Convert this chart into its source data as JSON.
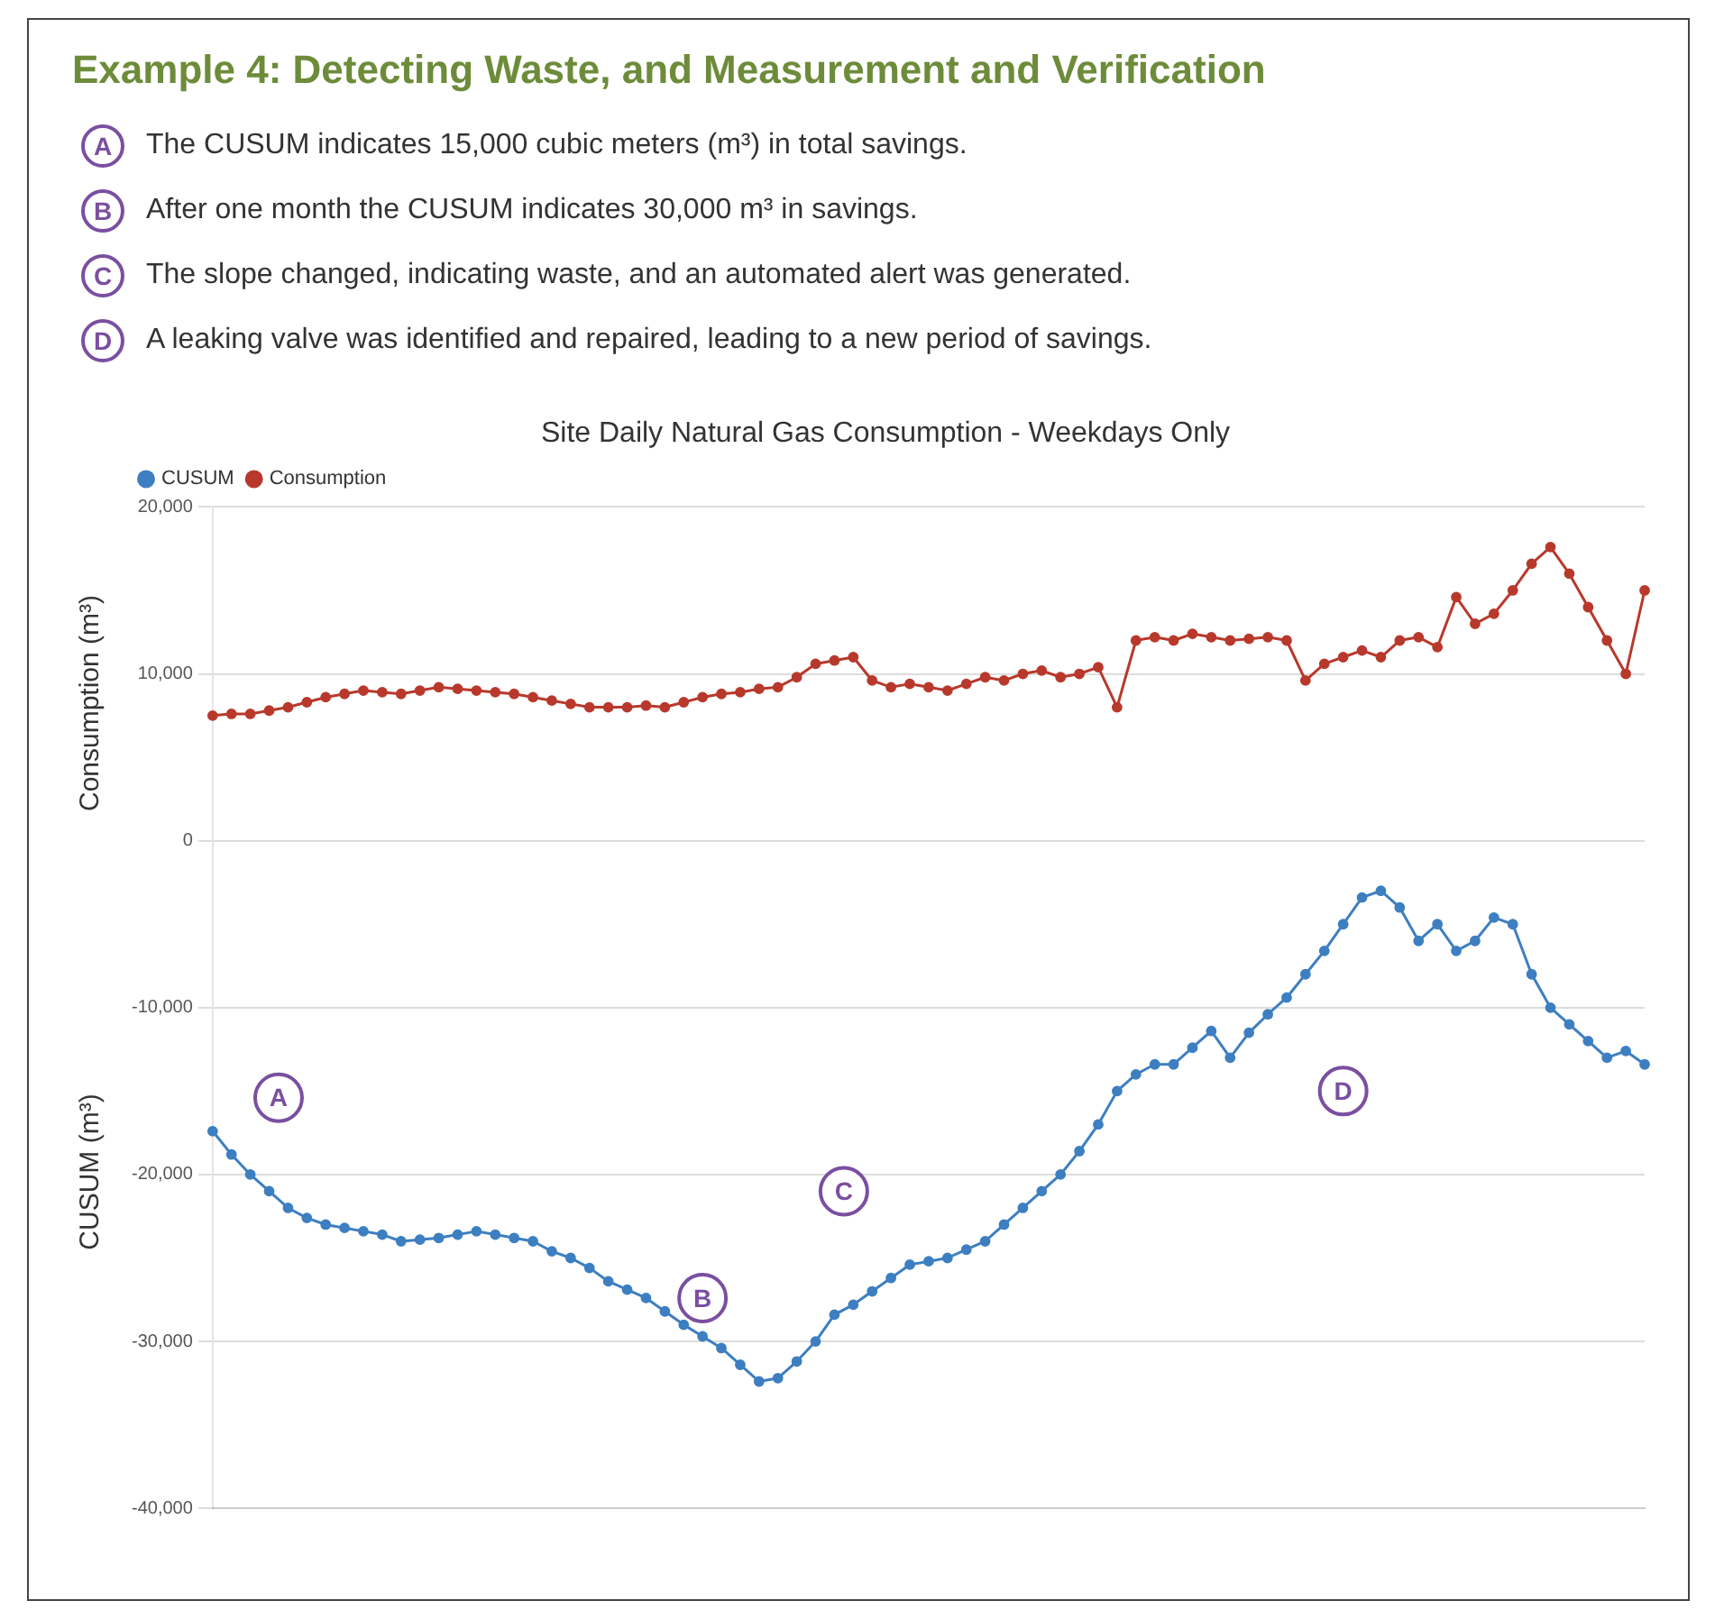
{
  "chart_data": {
    "type": "line",
    "title": "Example 4: Detecting Waste, and Measurement and Verification",
    "subtitle": "Site Daily Natural Gas Consumption - Weekdays Only",
    "ylabel": "Consumption (m³)",
    "y2label": "CUSUM (m³)",
    "categories": [
      null,
      null,
      null,
      null,
      null,
      null,
      null,
      null,
      null,
      null,
      null,
      null,
      null,
      null,
      null,
      null,
      null,
      null,
      null,
      null,
      null,
      null,
      null,
      null,
      null,
      null,
      null,
      null,
      null,
      null,
      null,
      null,
      null,
      null,
      null,
      null,
      null,
      null,
      null,
      null,
      null,
      null,
      null,
      null,
      null,
      null,
      null,
      null,
      null,
      null,
      null,
      null,
      null,
      null,
      null,
      null,
      null,
      null,
      null,
      null,
      null,
      null,
      null,
      null,
      null,
      null,
      null,
      null,
      null,
      null,
      null,
      null,
      null,
      null,
      null,
      null,
      null
    ],
    "series": [
      {
        "name": "CUSUM",
        "color": "#3d7fc1",
        "values": [
          -17400,
          -18800,
          -20000,
          -21000,
          -22000,
          -22600,
          -23000,
          -23200,
          -23400,
          -23600,
          -24000,
          -23900,
          -23800,
          -23600,
          -23400,
          -23600,
          -23800,
          -24000,
          -24600,
          -25000,
          -25600,
          -26400,
          -26900,
          -27400,
          -28200,
          -29000,
          -29700,
          -30400,
          -31400,
          -32400,
          -32200,
          -31200,
          -30000,
          -28400,
          -27800,
          -27000,
          -26200,
          -25400,
          -25200,
          -25000,
          -24500,
          -24000,
          -23000,
          -22000,
          -21000,
          -20000,
          -18600,
          -17000,
          -15000,
          -14000,
          -13400,
          -13400,
          -12400,
          -11400,
          -13000,
          -11500,
          -10400,
          -9400,
          -8000,
          -6600,
          -5000,
          -3400,
          -3000,
          -4000,
          -6000,
          -5000,
          -6600,
          -6000,
          -4600,
          -5000,
          -8000,
          -10000,
          -11000,
          -12000,
          -13000,
          -12600,
          -13400
        ]
      },
      {
        "name": "Consumption",
        "color": "#b8392c",
        "values": [
          7500,
          7600,
          7600,
          7800,
          8000,
          8300,
          8600,
          8800,
          9000,
          8900,
          8800,
          9000,
          9200,
          9100,
          9000,
          8900,
          8800,
          8600,
          8400,
          8200,
          8000,
          8000,
          8000,
          8100,
          8000,
          8300,
          8600,
          8800,
          8900,
          9100,
          9200,
          9800,
          10600,
          10800,
          11000,
          9600,
          9200,
          9400,
          9200,
          9000,
          9400,
          9800,
          9600,
          10000,
          10200,
          9800,
          10000,
          10400,
          8000,
          12000,
          12200,
          12000,
          12400,
          12200,
          12000,
          12100,
          12200,
          12000,
          9600,
          10600,
          11000,
          11400,
          11000,
          12000,
          12200,
          11600,
          14600,
          13000,
          13600,
          15000,
          16600,
          17600,
          16000,
          14000,
          12000,
          10000,
          15000
        ]
      }
    ],
    "ylim": [
      -40000,
      20000
    ],
    "yticks": [
      {
        "value": -40000,
        "label": "-40,000"
      },
      {
        "value": -30000,
        "label": "-30,000"
      },
      {
        "value": -20000,
        "label": "-20,000"
      },
      {
        "value": -10000,
        "label": "-10,000"
      },
      {
        "value": 0,
        "label": "0"
      },
      {
        "value": 10000,
        "label": "10,000"
      },
      {
        "value": 20000,
        "label": "20,000"
      }
    ],
    "grid": "y",
    "legend": "top left",
    "marker": "circle",
    "line_style": "solid",
    "annotations": [
      {
        "text": "A",
        "y": -15400
      },
      {
        "text": "B",
        "y": -27400
      },
      {
        "text": "C",
        "y": -21000
      },
      {
        "text": "D",
        "y": -15000
      },
      "The CUSUM  indicates 15,000 cubic meters (m³) in total savings.",
      "After one month the CUSUM indicates 30,000 m³ in savings.",
      "The slope changed, indicating waste, and an automated alert was generated.",
      "A leaking valve was identified and repaired, leading to a new period of savings."
    ]
  }
}
